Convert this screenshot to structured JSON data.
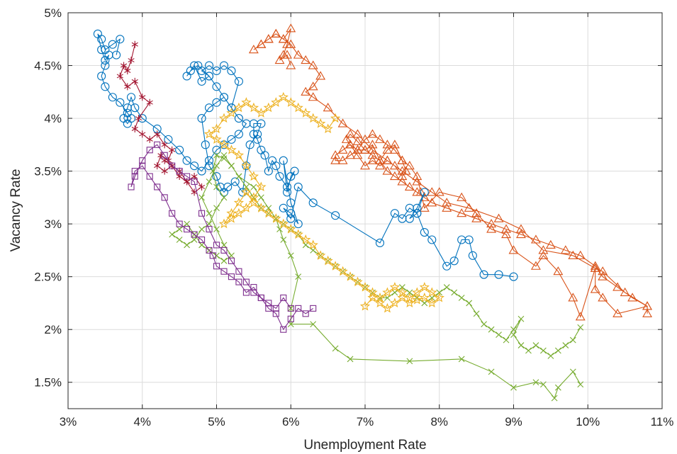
{
  "chart_data": {
    "type": "line",
    "title": "",
    "xlabel": "Unemployment Rate",
    "ylabel": "Vacancy Rate",
    "xlim": [
      3,
      11
    ],
    "ylim": [
      1.25,
      5
    ],
    "xticks": [
      3,
      4,
      5,
      6,
      7,
      8,
      9,
      10,
      11
    ],
    "xtick_labels": [
      "3%",
      "4%",
      "5%",
      "6%",
      "7%",
      "8%",
      "9%",
      "10%",
      "11%"
    ],
    "yticks": [
      1.5,
      2,
      2.5,
      3,
      3.5,
      4,
      4.5,
      5
    ],
    "ytick_labels": [
      "1.5%",
      "2%",
      "2.5%",
      "3%",
      "3.5%",
      "4%",
      "4.5%",
      "5%"
    ],
    "grid": true,
    "legend": "none",
    "series": [
      {
        "color": "#D95319",
        "marker": "triangle",
        "x": [
          10.8,
          10.8,
          10.4,
          10.2,
          10.1,
          10.1,
          9.9,
          9.8,
          9.6,
          9.4,
          9.3,
          9.0,
          8.9,
          8.7,
          8.5,
          8.3,
          8.0,
          7.8,
          7.75,
          7.7,
          7.6,
          7.5,
          7.4,
          7.3,
          7.2,
          7.1,
          7.0,
          6.9,
          6.8,
          6.75,
          6.8,
          6.9,
          7.0,
          7.1,
          7.2,
          7.3,
          7.4,
          7.5,
          7.55,
          7.5,
          7.4,
          7.3,
          7.2,
          7.1,
          7.0,
          6.9,
          6.8,
          6.7,
          6.6,
          6.6,
          6.7,
          6.8,
          6.9,
          7.0,
          7.1,
          7.2,
          7.3,
          7.4,
          7.5,
          7.6,
          7.7,
          7.8,
          7.9,
          8.1,
          8.3,
          8.5,
          8.7,
          8.9,
          9.1,
          9.3,
          9.5,
          9.7,
          9.9,
          10.1,
          10.2,
          10.4,
          10.6,
          10.8,
          10.5,
          10.2,
          10.1,
          9.8,
          9.4,
          9.1,
          8.8,
          8.4,
          8.1,
          7.9,
          7.7,
          7.5,
          7.3,
          7.1,
          6.9,
          6.7,
          6.5,
          6.3,
          6.2,
          6.3,
          6.4,
          6.3,
          6.2,
          6.1,
          6.0,
          5.9,
          5.8,
          5.7,
          5.6,
          5.5,
          5.6,
          5.7,
          5.8,
          5.9,
          6.0,
          5.95,
          5.9,
          5.85,
          5.95,
          6.0
        ],
        "y": [
          2.15,
          2.22,
          2.15,
          2.3,
          2.38,
          2.58,
          2.12,
          2.3,
          2.55,
          2.7,
          2.6,
          2.75,
          2.9,
          2.95,
          3.1,
          3.25,
          3.3,
          3.15,
          3.3,
          3.45,
          3.55,
          3.6,
          3.7,
          3.75,
          3.8,
          3.85,
          3.8,
          3.7,
          3.75,
          3.8,
          3.85,
          3.78,
          3.7,
          3.65,
          3.6,
          3.7,
          3.75,
          3.6,
          3.5,
          3.45,
          3.55,
          3.6,
          3.55,
          3.6,
          3.55,
          3.65,
          3.75,
          3.7,
          3.65,
          3.6,
          3.6,
          3.65,
          3.7,
          3.7,
          3.75,
          3.6,
          3.5,
          3.45,
          3.4,
          3.35,
          3.3,
          3.25,
          3.2,
          3.15,
          3.1,
          3.05,
          3.0,
          2.95,
          2.9,
          2.85,
          2.8,
          2.75,
          2.7,
          2.6,
          2.5,
          2.4,
          2.3,
          2.22,
          2.35,
          2.55,
          2.58,
          2.7,
          2.75,
          2.95,
          3.05,
          3.15,
          3.2,
          3.3,
          3.4,
          3.5,
          3.6,
          3.7,
          3.85,
          3.95,
          4.1,
          4.2,
          4.25,
          4.3,
          4.4,
          4.5,
          4.55,
          4.6,
          4.7,
          4.75,
          4.8,
          4.75,
          4.7,
          4.65,
          4.7,
          4.75,
          4.8,
          4.75,
          4.85,
          4.7,
          4.6,
          4.55,
          4.6,
          4.5
        ]
      },
      {
        "color": "#0072BD",
        "marker": "circle",
        "x": [
          9.0,
          8.8,
          8.6,
          8.45,
          8.4,
          8.3,
          8.2,
          8.1,
          7.9,
          7.8,
          7.7,
          7.6,
          7.7,
          7.8,
          7.7,
          7.6,
          7.5,
          7.4,
          7.2,
          6.6,
          6.3,
          6.1,
          6.0,
          5.9,
          6.0,
          6.1,
          6.0,
          5.9,
          5.95,
          6.0,
          6.05,
          5.95,
          5.85,
          5.8,
          5.75,
          5.7,
          5.65,
          5.6,
          5.55,
          5.5,
          5.5,
          5.6,
          5.55,
          5.45,
          5.4,
          5.35,
          5.25,
          5.15,
          5.1,
          5.05,
          5.0,
          4.9,
          4.85,
          4.8,
          4.9,
          5.0,
          5.1,
          5.2,
          5.3,
          5.2,
          5.1,
          5.0,
          4.9,
          4.8,
          4.9,
          4.8,
          4.7,
          4.6,
          4.65,
          4.75,
          4.9,
          5.0,
          5.1,
          5.2,
          5.3,
          5.4,
          5.3,
          5.2,
          5.1,
          5.0,
          4.9,
          4.8,
          4.7,
          4.6,
          4.5,
          4.35,
          4.2,
          4.0,
          3.9,
          3.85,
          3.8,
          3.75,
          3.8,
          3.85,
          3.8,
          3.7,
          3.6,
          3.5,
          3.45,
          3.5,
          3.55,
          3.5,
          3.45,
          3.4,
          3.45,
          3.5,
          3.6,
          3.7,
          3.65
        ],
        "y": [
          2.5,
          2.52,
          2.52,
          2.7,
          2.85,
          2.85,
          2.65,
          2.6,
          2.85,
          2.92,
          3.1,
          3.05,
          3.15,
          3.3,
          3.1,
          3.15,
          3.05,
          3.1,
          2.82,
          3.08,
          3.2,
          3.35,
          3.05,
          3.15,
          3.1,
          3.0,
          3.2,
          3.6,
          3.3,
          3.45,
          3.5,
          3.35,
          3.45,
          3.55,
          3.6,
          3.5,
          3.65,
          3.7,
          3.8,
          3.85,
          3.95,
          3.95,
          3.85,
          3.75,
          3.55,
          3.3,
          3.4,
          3.35,
          3.3,
          3.35,
          3.45,
          3.55,
          3.75,
          4.0,
          4.1,
          4.15,
          4.2,
          4.1,
          4.35,
          4.45,
          4.5,
          4.45,
          4.5,
          4.45,
          4.4,
          4.35,
          4.5,
          4.4,
          4.45,
          4.5,
          4.4,
          4.3,
          4.2,
          4.1,
          4.0,
          3.95,
          3.85,
          3.8,
          3.75,
          3.7,
          3.6,
          3.5,
          3.55,
          3.6,
          3.7,
          3.8,
          3.9,
          4.0,
          4.1,
          4.2,
          4.1,
          4.0,
          3.95,
          4.0,
          4.05,
          4.15,
          4.2,
          4.3,
          4.4,
          4.5,
          4.6,
          4.55,
          4.65,
          4.8,
          4.75,
          4.65,
          4.7,
          4.75,
          4.6
        ]
      },
      {
        "color": "#77AC30",
        "marker": "cross",
        "x": [
          9.9,
          9.8,
          9.6,
          9.55,
          9.4,
          9.3,
          9.0,
          8.7,
          8.3,
          7.6,
          6.8,
          6.6,
          6.3,
          6.0,
          6.0,
          6.1,
          6.0,
          5.9,
          5.85,
          5.8,
          5.7,
          5.6,
          5.5,
          5.3,
          5.2,
          5.1,
          5.0,
          4.95,
          5.0,
          5.1,
          5.0,
          4.9,
          4.8,
          4.7,
          4.6,
          4.5,
          4.4,
          4.5,
          4.6,
          4.7,
          4.8,
          4.9,
          5.0,
          5.1,
          5.2,
          5.1,
          5.0,
          4.9,
          4.8,
          4.9,
          5.0,
          5.1,
          5.2,
          5.3,
          5.4,
          5.5,
          5.6,
          5.7,
          5.8,
          5.9,
          6.0,
          6.1,
          6.2,
          6.3,
          6.4,
          6.5,
          6.6,
          6.7,
          6.8,
          6.9,
          7.0,
          7.1,
          7.2,
          7.3,
          7.4,
          7.5,
          7.6,
          7.7,
          7.8,
          7.9,
          8.0,
          8.1,
          8.2,
          8.3,
          8.4,
          8.5,
          8.6,
          8.7,
          8.8,
          8.9,
          9.0,
          9.1,
          9.0,
          9.1,
          9.2,
          9.3,
          9.4,
          9.5,
          9.6,
          9.7,
          9.8,
          9.9
        ],
        "y": [
          1.48,
          1.6,
          1.45,
          1.35,
          1.48,
          1.5,
          1.45,
          1.6,
          1.72,
          1.7,
          1.72,
          1.82,
          2.05,
          2.05,
          2.2,
          2.5,
          2.7,
          2.85,
          2.95,
          3.05,
          3.15,
          3.25,
          3.35,
          3.45,
          3.55,
          3.62,
          3.65,
          3.5,
          3.35,
          3.25,
          3.15,
          3.0,
          2.95,
          2.85,
          2.8,
          2.85,
          2.9,
          2.95,
          3.0,
          2.9,
          2.8,
          2.75,
          2.7,
          2.65,
          2.7,
          2.8,
          2.95,
          3.1,
          3.25,
          3.4,
          3.55,
          3.65,
          3.55,
          3.45,
          3.35,
          3.25,
          3.15,
          3.1,
          3.05,
          3.0,
          2.95,
          2.9,
          2.8,
          2.75,
          2.7,
          2.65,
          2.6,
          2.55,
          2.5,
          2.45,
          2.4,
          2.35,
          2.3,
          2.3,
          2.35,
          2.4,
          2.35,
          2.3,
          2.25,
          2.3,
          2.35,
          2.4,
          2.35,
          2.3,
          2.25,
          2.15,
          2.05,
          2.0,
          1.95,
          1.9,
          2.0,
          2.1,
          1.95,
          1.85,
          1.8,
          1.85,
          1.8,
          1.75,
          1.8,
          1.85,
          1.9,
          2.02
        ]
      },
      {
        "color": "#EDB120",
        "marker": "star",
        "x": [
          7.0,
          7.1,
          7.2,
          7.3,
          7.4,
          7.5,
          7.6,
          7.7,
          7.8,
          7.9,
          8.0,
          7.9,
          7.8,
          7.7,
          7.6,
          7.5,
          7.4,
          7.3,
          7.2,
          7.1,
          7.0,
          6.9,
          6.8,
          6.7,
          6.6,
          6.5,
          6.4,
          6.3,
          6.2,
          6.1,
          6.0,
          5.9,
          5.8,
          5.7,
          5.6,
          5.5,
          5.4,
          5.3,
          5.2,
          5.1,
          5.2,
          5.3,
          5.4,
          5.5,
          5.6,
          5.5,
          5.4,
          5.3,
          5.2,
          5.1,
          5.0,
          4.9,
          5.0,
          5.1,
          5.2,
          5.3,
          5.4,
          5.5,
          5.6,
          5.7,
          5.8,
          5.9,
          6.0,
          6.1,
          6.2,
          6.3,
          6.4,
          6.5,
          6.6
        ],
        "y": [
          2.22,
          2.3,
          2.25,
          2.2,
          2.25,
          2.3,
          2.25,
          2.28,
          2.3,
          2.25,
          2.3,
          2.35,
          2.4,
          2.35,
          2.3,
          2.35,
          2.4,
          2.35,
          2.3,
          2.35,
          2.4,
          2.45,
          2.5,
          2.55,
          2.6,
          2.65,
          2.7,
          2.8,
          2.85,
          2.9,
          2.95,
          3.0,
          3.05,
          3.1,
          3.15,
          3.2,
          3.3,
          3.2,
          3.1,
          3.0,
          3.05,
          3.1,
          3.15,
          3.25,
          3.35,
          3.45,
          3.55,
          3.65,
          3.7,
          3.75,
          3.8,
          3.85,
          3.9,
          4.0,
          4.05,
          4.1,
          4.15,
          4.1,
          4.05,
          4.1,
          4.15,
          4.2,
          4.15,
          4.1,
          4.05,
          4.0,
          3.95,
          3.9,
          4.0
        ]
      },
      {
        "color": "#A2142F",
        "marker": "asterisk",
        "x": [
          3.9,
          3.85,
          3.8,
          3.75,
          3.7,
          3.8,
          3.9,
          4.0,
          4.1,
          3.95,
          3.9,
          4.0,
          4.1,
          4.2,
          4.3,
          4.4,
          4.35,
          4.25,
          4.2,
          4.3,
          4.4,
          4.5,
          4.6,
          4.7,
          4.8,
          4.7,
          4.6,
          4.5,
          4.4,
          4.3
        ],
        "y": [
          4.7,
          4.55,
          4.45,
          4.5,
          4.4,
          4.3,
          4.35,
          4.2,
          4.15,
          4.0,
          3.9,
          3.85,
          3.8,
          3.85,
          3.75,
          3.7,
          3.6,
          3.65,
          3.55,
          3.5,
          3.55,
          3.45,
          3.4,
          3.45,
          3.35,
          3.3,
          3.4,
          3.5,
          3.55,
          3.6
        ]
      },
      {
        "color": "#7E2F8E",
        "marker": "square",
        "x": [
          6.3,
          6.2,
          6.1,
          6.0,
          5.9,
          5.8,
          5.7,
          5.6,
          5.5,
          5.4,
          5.3,
          5.2,
          5.1,
          5.0,
          4.95,
          4.9,
          4.8,
          4.7,
          4.6,
          4.5,
          4.4,
          4.3,
          4.2,
          4.1,
          4.0,
          3.9,
          3.85,
          3.9,
          4.0,
          4.1,
          4.2,
          4.3,
          4.4,
          4.5,
          4.6,
          4.7,
          4.8,
          4.9,
          5.0,
          5.1,
          5.2,
          5.3,
          5.4,
          5.5,
          5.6,
          5.7,
          5.8,
          5.9,
          6.0
        ],
        "y": [
          2.2,
          2.15,
          2.2,
          2.1,
          2.0,
          2.15,
          2.2,
          2.3,
          2.4,
          2.35,
          2.45,
          2.5,
          2.55,
          2.6,
          2.7,
          2.75,
          2.85,
          2.9,
          2.95,
          3.0,
          3.1,
          3.25,
          3.35,
          3.45,
          3.55,
          3.5,
          3.35,
          3.45,
          3.6,
          3.7,
          3.75,
          3.65,
          3.55,
          3.5,
          3.45,
          3.4,
          3.1,
          2.95,
          2.8,
          2.75,
          2.65,
          2.55,
          2.45,
          2.35,
          2.3,
          2.25,
          2.2,
          2.3,
          2.2
        ]
      }
    ]
  }
}
